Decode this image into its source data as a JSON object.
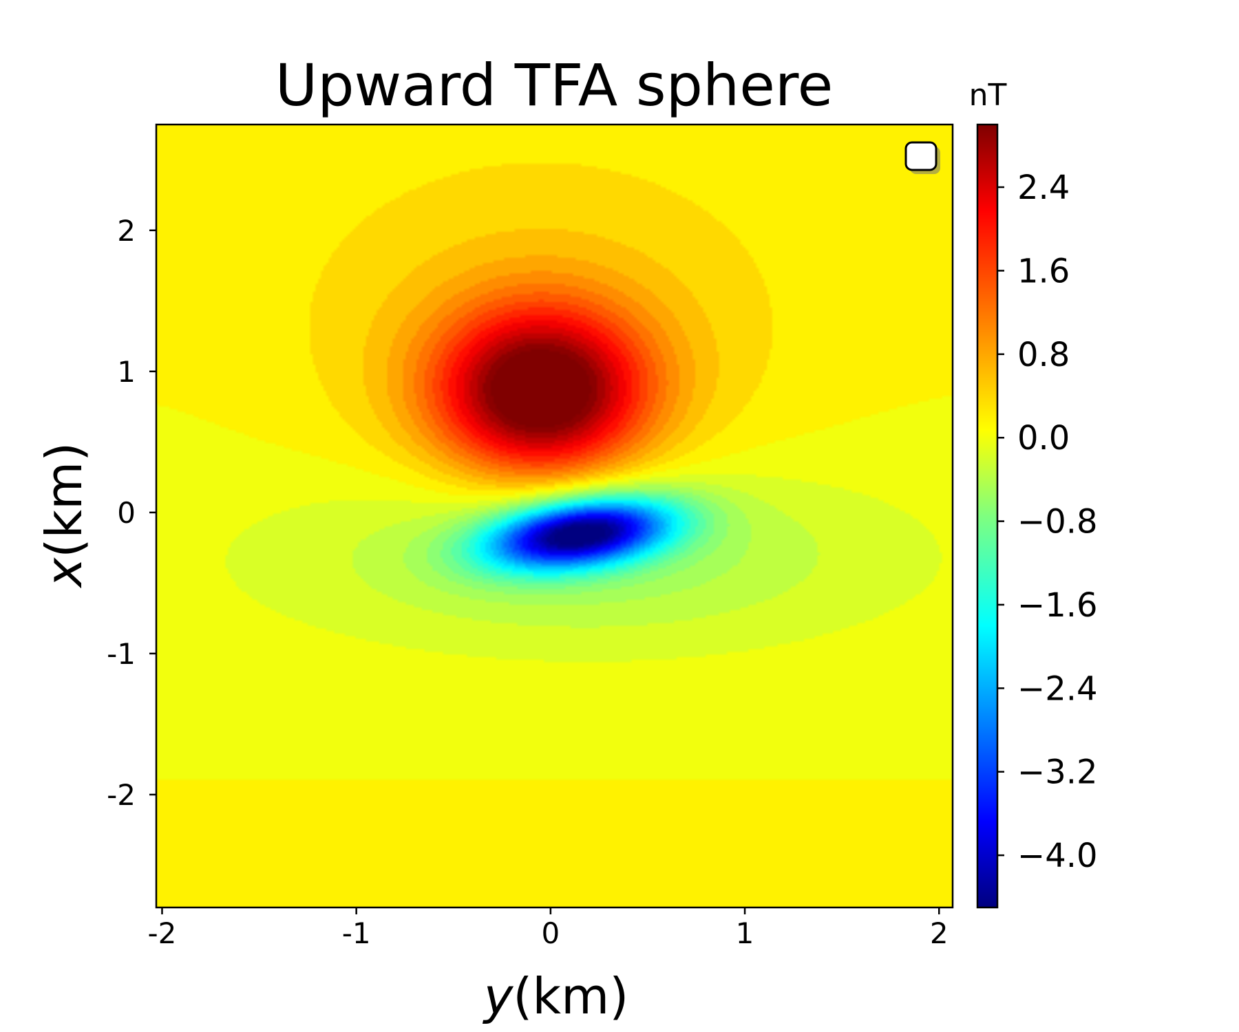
{
  "chart_data": {
    "type": "heatmap",
    "title": "Upward TFA sphere",
    "xlabel_var": "y",
    "xlabel_unit": "(km)",
    "ylabel_var": "x",
    "ylabel_unit": "(km)",
    "colorbar_unit": "nT",
    "xlim": [
      -2.03,
      2.07
    ],
    "ylim": [
      -2.8,
      2.75
    ],
    "x_ticks": [
      {
        "value": -2,
        "label": "-2"
      },
      {
        "value": -1,
        "label": "-1"
      },
      {
        "value": 0,
        "label": "0"
      },
      {
        "value": 1,
        "label": "1"
      },
      {
        "value": 2,
        "label": "2"
      }
    ],
    "y_ticks": [
      {
        "value": 2,
        "label": "2"
      },
      {
        "value": 1,
        "label": "1"
      },
      {
        "value": 0,
        "label": "0"
      },
      {
        "value": -1,
        "label": "-1"
      },
      {
        "value": -2,
        "label": "-2"
      }
    ],
    "colorbar_range": [
      -4.5,
      3.0
    ],
    "colorbar_ticks": [
      {
        "value": 2.4,
        "label": "2.4"
      },
      {
        "value": 1.6,
        "label": "1.6"
      },
      {
        "value": 0.8,
        "label": "0.8"
      },
      {
        "value": 0.0,
        "label": "0.0"
      },
      {
        "value": -0.8,
        "label": "−0.8"
      },
      {
        "value": -1.6,
        "label": "−1.6"
      },
      {
        "value": -2.4,
        "label": "−2.4"
      },
      {
        "value": -3.2,
        "label": "−3.2"
      },
      {
        "value": -4.0,
        "label": "−4.0"
      }
    ],
    "colormap": "jet",
    "field_sources": [
      {
        "name": "positive-anomaly",
        "peak_nT": 3.0,
        "center": [
          -0.05,
          0.85
        ]
      },
      {
        "name": "negative-anomaly",
        "peak_nT": -4.5,
        "center": [
          0.15,
          -0.15
        ]
      }
    ],
    "legend": {
      "placement": "top-right",
      "entries": []
    }
  }
}
